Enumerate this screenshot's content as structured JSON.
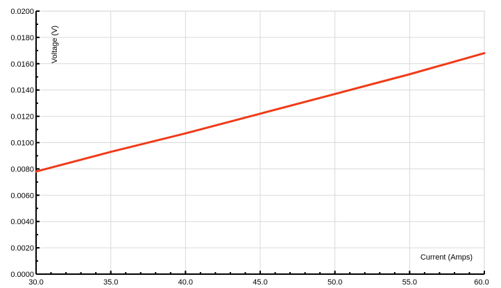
{
  "chart_data": {
    "type": "line",
    "title": "",
    "xlabel": "Current (Amps)",
    "ylabel": "Voltage (V)",
    "xlim": [
      30.0,
      60.0
    ],
    "ylim": [
      0.0,
      0.02
    ],
    "x_ticks": [
      "30.0",
      "35.0",
      "40.0",
      "45.0",
      "50.0",
      "55.0",
      "60.0"
    ],
    "y_ticks": [
      "0.0000",
      "0.0020",
      "0.0040",
      "0.0060",
      "0.0080",
      "0.0100",
      "0.0120",
      "0.0140",
      "0.0160",
      "0.0180",
      "0.0200"
    ],
    "grid": true,
    "series": [
      {
        "color": "#f03a17",
        "x": [
          30.0,
          35.0,
          40.0,
          45.0,
          50.0,
          55.0,
          60.0
        ],
        "y": [
          0.0078,
          0.0093,
          0.0107,
          0.0122,
          0.0137,
          0.0152,
          0.0168
        ]
      }
    ]
  }
}
